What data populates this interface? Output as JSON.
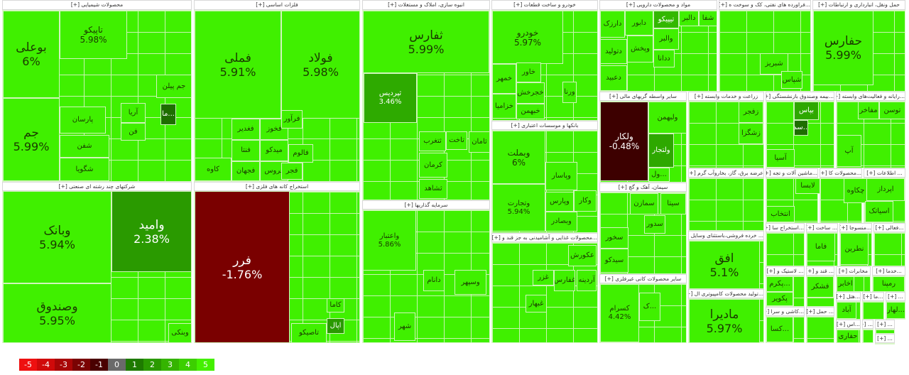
{
  "sectors": [
    {
      "title": "محصولات شیمیایی [+]"
    },
    {
      "title": "فلزات اساسی [+]"
    },
    {
      "title": "انبوه سازی، املاک و مستغلات [+]"
    },
    {
      "title": "خودرو و ساخت قطعات [+]"
    },
    {
      "title": "مواد و محصولات دارویی [+]"
    },
    {
      "title": "...فراورده های نفتی، کک و سوخت ه [+]"
    },
    {
      "title": "حمل ونقل، انبارداری و ارتباطات [+]"
    },
    {
      "title": "شرکتهای چند رشته ای صنعتی [+]"
    },
    {
      "title": "استخراج کانه های فلزی [+]"
    },
    {
      "title": "سرمایه گذاریها [+]"
    },
    {
      "title": "بانکها و موسسات اعتباری [+]"
    },
    {
      "title": "...محصولات غذایی و آشامیدنی به جز قند و [+]"
    },
    {
      "title": "سایر واسطه گریهای مالی [+]"
    },
    {
      "title": "زراعت و خدمات وابسته [+]"
    },
    {
      "title": "...بیمه وصندوق بازنشستگی [+]"
    },
    {
      "title": "...رایانه و فعالیت‌های وابسته [+]"
    },
    {
      "title": "سیمان، آهک و گچ [+]"
    },
    {
      "title": "سایر محصولات کانی غیرفلزی [+]"
    },
    {
      "title": "عرضه برق، گاز، بخاروآب گرم [+]"
    },
    {
      "title": "...ماشین آلات و تجه [+]"
    },
    {
      "title": "...محصولات کا [+]"
    },
    {
      "title": "... اطلاعات [+]"
    },
    {
      "title": "... خرده فروشی،باستثنای وسایل [+]"
    },
    {
      "title": "...تولید محصولات کامپیوتری ال [+]"
    },
    {
      "title": "...استخراج سا [+]"
    },
    {
      "title": "... ساخت [+]"
    },
    {
      "title": "...منسوجا [+]"
    },
    {
      "title": "...فعالی [+]"
    },
    {
      "title": "... لاستیک و [+]"
    },
    {
      "title": "... قند و [+]"
    },
    {
      "title": "مخابرات [+]"
    },
    {
      "title": "...خدما [+]"
    },
    {
      "title": "...کاشی و سرا [+]"
    },
    {
      "title": "... حمل [+]"
    },
    {
      "title": "...هتل [+]"
    },
    {
      "title": "...ما [+]"
    },
    {
      "title": "... [+]"
    },
    {
      "title": "...اس [+]"
    },
    {
      "title": "... [+]"
    },
    {
      "title": "... [+]"
    },
    {
      "title": "... [+]"
    }
  ],
  "tiles": [
    {
      "symbol": "بوعلی",
      "change": "6%"
    },
    {
      "symbol": "جم",
      "change": "5.99%"
    },
    {
      "symbol": "تاپیکو",
      "change": "5.98%"
    },
    {
      "symbol": "جم پیلن",
      "change": ""
    },
    {
      "symbol": "پارسان",
      "change": ""
    },
    {
      "symbol": "شفن",
      "change": ""
    },
    {
      "symbol": "شگویا",
      "change": ""
    },
    {
      "symbol": "آریا",
      "change": ""
    },
    {
      "symbol": "فن",
      "change": ""
    },
    {
      "symbol": "...ما",
      "change": ""
    },
    {
      "symbol": "فملی",
      "change": "5.91%"
    },
    {
      "symbol": "فولاد",
      "change": "5.98%"
    },
    {
      "symbol": "فغدیر",
      "change": ""
    },
    {
      "symbol": "فنتا",
      "change": ""
    },
    {
      "symbol": "فجهان",
      "change": ""
    },
    {
      "symbol": "کاوه",
      "change": ""
    },
    {
      "symbol": "فخوز",
      "change": ""
    },
    {
      "symbol": "میدکو",
      "change": ""
    },
    {
      "symbol": "فروس",
      "change": ""
    },
    {
      "symbol": "فرآور",
      "change": ""
    },
    {
      "symbol": "فالوم",
      "change": ""
    },
    {
      "symbol": "فجر",
      "change": ""
    },
    {
      "symbol": "ثفارس",
      "change": "5.99%"
    },
    {
      "symbol": "ثپردیس",
      "change": "3.46%"
    },
    {
      "symbol": "تاخت",
      "change": ""
    },
    {
      "symbol": "ثامان",
      "change": ""
    },
    {
      "symbol": "ثتغرب",
      "change": ""
    },
    {
      "symbol": "کرمان",
      "change": ""
    },
    {
      "symbol": "ثشاهد",
      "change": ""
    },
    {
      "symbol": "خودرو",
      "change": "5.97%"
    },
    {
      "symbol": "خمهر",
      "change": ""
    },
    {
      "symbol": "خاور",
      "change": ""
    },
    {
      "symbol": "خزامیا",
      "change": ""
    },
    {
      "symbol": "خجرخش",
      "change": ""
    },
    {
      "symbol": "خبهمن",
      "change": ""
    },
    {
      "symbol": "ورنا",
      "change": ""
    },
    {
      "symbol": "وبملت",
      "change": "6%"
    },
    {
      "symbol": "وتجارت",
      "change": "5.94%"
    },
    {
      "symbol": "وپاسار",
      "change": ""
    },
    {
      "symbol": "وپارس",
      "change": ""
    },
    {
      "symbol": "وکار",
      "change": ""
    },
    {
      "symbol": "وبصادر",
      "change": ""
    },
    {
      "symbol": "دارزک",
      "change": ""
    },
    {
      "symbol": "دابور",
      "change": ""
    },
    {
      "symbol": "تیپیکو",
      "change": ""
    },
    {
      "symbol": "دالبر",
      "change": ""
    },
    {
      "symbol": "شفا",
      "change": ""
    },
    {
      "symbol": "دتولید",
      "change": ""
    },
    {
      "symbol": "دعبید",
      "change": ""
    },
    {
      "symbol": "وپخش",
      "change": ""
    },
    {
      "symbol": "والبر",
      "change": ""
    },
    {
      "symbol": "ددانا",
      "change": ""
    },
    {
      "symbol": "حفارس",
      "change": "5.99%"
    },
    {
      "symbol": "شبریز",
      "change": ""
    },
    {
      "symbol": "شپاس",
      "change": ""
    },
    {
      "symbol": "ولکار",
      "change": "-0.48%"
    },
    {
      "symbol": "ولبهمن",
      "change": ""
    },
    {
      "symbol": "ولتجار",
      "change": ""
    },
    {
      "symbol": "...ول",
      "change": ""
    },
    {
      "symbol": "زفجر",
      "change": ""
    },
    {
      "symbol": "زشگزا",
      "change": ""
    },
    {
      "symbol": "بپاس",
      "change": ""
    },
    {
      "symbol": "...سم",
      "change": ""
    },
    {
      "symbol": "آسیا",
      "change": ""
    },
    {
      "symbol": "توسن",
      "change": ""
    },
    {
      "symbol": "مفاخر",
      "change": ""
    },
    {
      "symbol": "آپ",
      "change": ""
    },
    {
      "symbol": "وبانک",
      "change": "5.94%"
    },
    {
      "symbol": "وامید",
      "change": "2.38%"
    },
    {
      "symbol": "وصندوق",
      "change": "5.95%"
    },
    {
      "symbol": "وبنکی",
      "change": ""
    },
    {
      "symbol": "فرر",
      "change": "-1.76%"
    },
    {
      "symbol": "کاما",
      "change": ""
    },
    {
      "symbol": "اپال",
      "change": ""
    },
    {
      "symbol": "تاصیکو",
      "change": ""
    },
    {
      "symbol": "واعتبار",
      "change": "5.86%"
    },
    {
      "symbol": "دانام",
      "change": ""
    },
    {
      "symbol": "وسپهر",
      "change": ""
    },
    {
      "symbol": "شهر",
      "change": ""
    },
    {
      "symbol": "عکورش",
      "change": ""
    },
    {
      "symbol": "غفارس",
      "change": ""
    },
    {
      "symbol": "آردینه",
      "change": ""
    },
    {
      "symbol": "غزر",
      "change": ""
    },
    {
      "symbol": "غبهار",
      "change": ""
    },
    {
      "symbol": "سخور",
      "change": ""
    },
    {
      "symbol": "سیدکو",
      "change": ""
    },
    {
      "symbol": "سمازن",
      "change": ""
    },
    {
      "symbol": "سیتا",
      "change": ""
    },
    {
      "symbol": "سدور",
      "change": ""
    },
    {
      "symbol": "کسرام",
      "change": "4.42%"
    },
    {
      "symbol": "...ک",
      "change": ""
    },
    {
      "symbol": "افق",
      "change": "5.1%"
    },
    {
      "symbol": "مادیرا",
      "change": "5.97%"
    },
    {
      "symbol": "انتخاب",
      "change": ""
    },
    {
      "symbol": "لابسا",
      "change": ""
    },
    {
      "symbol": "چکاوه",
      "change": ""
    },
    {
      "symbol": "اپرداز",
      "change": ""
    },
    {
      "symbol": "اسیاتک",
      "change": ""
    },
    {
      "symbol": "فاما",
      "change": ""
    },
    {
      "symbol": "نطرین",
      "change": ""
    },
    {
      "symbol": "فشکر",
      "change": ""
    },
    {
      "symbol": "اخابر",
      "change": ""
    },
    {
      "symbol": "رمپنا",
      "change": ""
    },
    {
      "symbol": "...پکرم",
      "change": ""
    },
    {
      "symbol": "پکویر",
      "change": ""
    },
    {
      "symbol": "آباد",
      "change": ""
    },
    {
      "symbol": "...لهار",
      "change": ""
    },
    {
      "symbol": "...کسا",
      "change": ""
    },
    {
      "symbol": "حفاری",
      "change": ""
    }
  ],
  "legend": [
    {
      "label": "-5",
      "color": "#ee1010"
    },
    {
      "label": "-4",
      "color": "#d00a0a"
    },
    {
      "label": "-3",
      "color": "#a80606"
    },
    {
      "label": "-2",
      "color": "#7a0303"
    },
    {
      "label": "-1",
      "color": "#4a0000"
    },
    {
      "label": "0",
      "color": "#6a6a6a"
    },
    {
      "label": "1",
      "color": "#1e7a00"
    },
    {
      "label": "2",
      "color": "#2a9a00"
    },
    {
      "label": "3",
      "color": "#35b400"
    },
    {
      "label": "4",
      "color": "#3ccf00"
    },
    {
      "label": "5",
      "color": "#44f000"
    }
  ]
}
